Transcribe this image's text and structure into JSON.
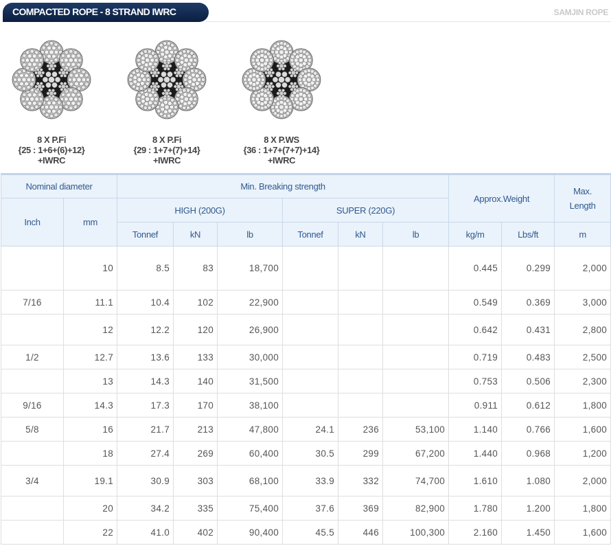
{
  "header": {
    "title": "COMPACTED ROPE - 8 STRAND IWRC",
    "brand": "SAMJIN ROPE"
  },
  "ropes": [
    {
      "line1": "8 X P.Fi",
      "line2": "{25 : 1+6+(6)+12}",
      "line3": "+IWRC"
    },
    {
      "line1": "8 X P.Fi",
      "line2": "{29 : 1+7+(7)+14}",
      "line3": "+IWRC"
    },
    {
      "line1": "8 X P.WS",
      "line2": "{36 : 1+7+(7+7)+14}",
      "line3": "+IWRC"
    }
  ],
  "table": {
    "headers": {
      "nominal": "Nominal diameter",
      "mbs": "Min. Breaking strength",
      "weight": "Approx.Weight",
      "max_length": "Max. Length",
      "inch": "Inch",
      "mm": "mm",
      "high": "HIGH (200G)",
      "super": "SUPER (220G)",
      "kgm": "kg/m",
      "lbsft": "Lbs/ft",
      "high_tonnef": "Tonnef",
      "high_kn": "kN",
      "high_lb": "lb",
      "super_tonnef": "Tonnef",
      "super_kn": "kN",
      "super_lb": "lb",
      "m": "m"
    },
    "rows": [
      {
        "inch": "",
        "mm": "10",
        "h_t": "8.5",
        "h_kn": "83",
        "h_lb": "18,700",
        "s_t": "",
        "s_kn": "",
        "s_lb": "",
        "kgm": "0.445",
        "lbsft": "0.299",
        "m": "2,000"
      },
      {
        "inch": "7/16",
        "mm": "11.1",
        "h_t": "10.4",
        "h_kn": "102",
        "h_lb": "22,900",
        "s_t": "",
        "s_kn": "",
        "s_lb": "",
        "kgm": "0.549",
        "lbsft": "0.369",
        "m": "3,000"
      },
      {
        "inch": "",
        "mm": "12",
        "h_t": "12.2",
        "h_kn": "120",
        "h_lb": "26,900",
        "s_t": "",
        "s_kn": "",
        "s_lb": "",
        "kgm": "0.642",
        "lbsft": "0.431",
        "m": "2,800"
      },
      {
        "inch": "1/2",
        "mm": "12.7",
        "h_t": "13.6",
        "h_kn": "133",
        "h_lb": "30,000",
        "s_t": "",
        "s_kn": "",
        "s_lb": "",
        "kgm": "0.719",
        "lbsft": "0.483",
        "m": "2,500"
      },
      {
        "inch": "",
        "mm": "13",
        "h_t": "14.3",
        "h_kn": "140",
        "h_lb": "31,500",
        "s_t": "",
        "s_kn": "",
        "s_lb": "",
        "kgm": "0.753",
        "lbsft": "0.506",
        "m": "2,300"
      },
      {
        "inch": "9/16",
        "mm": "14.3",
        "h_t": "17.3",
        "h_kn": "170",
        "h_lb": "38,100",
        "s_t": "",
        "s_kn": "",
        "s_lb": "",
        "kgm": "0.911",
        "lbsft": "0.612",
        "m": "1,800"
      },
      {
        "inch": "5/8",
        "mm": "16",
        "h_t": "21.7",
        "h_kn": "213",
        "h_lb": "47,800",
        "s_t": "24.1",
        "s_kn": "236",
        "s_lb": "53,100",
        "kgm": "1.140",
        "lbsft": "0.766",
        "m": "1,600"
      },
      {
        "inch": "",
        "mm": "18",
        "h_t": "27.4",
        "h_kn": "269",
        "h_lb": "60,400",
        "s_t": "30.5",
        "s_kn": "299",
        "s_lb": "67,200",
        "kgm": "1.440",
        "lbsft": "0.968",
        "m": "1,200"
      },
      {
        "inch": "3/4",
        "mm": "19.1",
        "h_t": "30.9",
        "h_kn": "303",
        "h_lb": "68,100",
        "s_t": "33.9",
        "s_kn": "332",
        "s_lb": "74,700",
        "kgm": "1.610",
        "lbsft": "1.080",
        "m": "2,000"
      },
      {
        "inch": "",
        "mm": "20",
        "h_t": "34.2",
        "h_kn": "335",
        "h_lb": "75,400",
        "s_t": "37.6",
        "s_kn": "369",
        "s_lb": "82,900",
        "kgm": "1.780",
        "lbsft": "1.200",
        "m": "1,800"
      },
      {
        "inch": "",
        "mm": "22",
        "h_t": "41.0",
        "h_kn": "402",
        "h_lb": "90,400",
        "s_t": "45.5",
        "s_kn": "446",
        "s_lb": "100,300",
        "kgm": "2.160",
        "lbsft": "1.450",
        "m": "1,600"
      }
    ]
  }
}
